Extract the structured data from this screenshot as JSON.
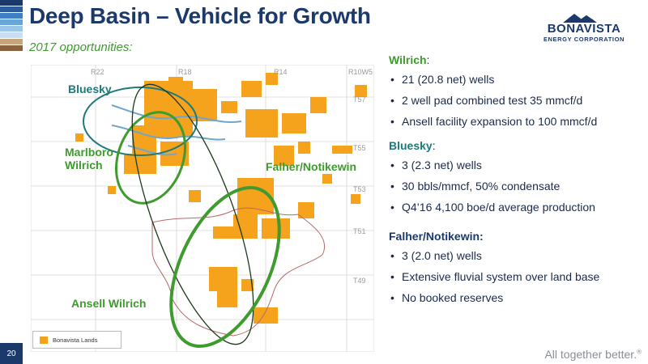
{
  "header": {
    "title": "Deep Basin – Vehicle for Growth",
    "subtitle": "2017 opportunities:"
  },
  "logo": {
    "name": "BONAVISTA",
    "sub": "ENERGY CORPORATION"
  },
  "map": {
    "range_labels": [
      "R22",
      "R18",
      "R14",
      "R10W5"
    ],
    "township_labels": [
      "T57",
      "T55",
      "T53",
      "T51",
      "T49"
    ],
    "areas": [
      {
        "name": "Bluesky",
        "color": "#1e7a7a"
      },
      {
        "name": "Marlboro Wilrich",
        "color": "#3f9a2f"
      },
      {
        "name": "Falher/Notikewin",
        "color": "#3f9a2f"
      },
      {
        "name": "Ansell Wilrich",
        "color": "#3f9a2f"
      }
    ],
    "legend_label": "Bonavista Lands",
    "colors": {
      "lands": "#f5a21c",
      "grid": "#cfcfcf",
      "river": "#6fa6c9",
      "boundary": "#b56a6a"
    }
  },
  "sections": [
    {
      "heading": "Wilrich",
      "heading_suffix": ":",
      "color": "#3f9a2f",
      "items": [
        "21 (20.8 net) wells",
        "2 well pad combined test 35 mmcf/d",
        "Ansell facility expansion to 100 mmcf/d"
      ]
    },
    {
      "heading": "Bluesky",
      "heading_suffix": ":",
      "color": "#1e7a7a",
      "items": [
        "3 (2.3 net) wells",
        "30 bbls/mmcf, 50% condensate",
        "Q4’16 4,100 boe/d average production"
      ]
    },
    {
      "heading": "Falher/Notikewin",
      "heading_suffix": ":",
      "color": "#1b3a6b",
      "items": [
        "3 (2.0 net) wells",
        "Extensive fluvial system over land base",
        "No booked reserves"
      ]
    }
  ],
  "footer": {
    "page_number": "20",
    "tagline": "All together better.",
    "tagline_mark": "®"
  },
  "palette": {
    "navy": "#1b3a6b",
    "green": "#3f9a2f",
    "teal": "#1e7a7a",
    "orange": "#f5a21c"
  }
}
